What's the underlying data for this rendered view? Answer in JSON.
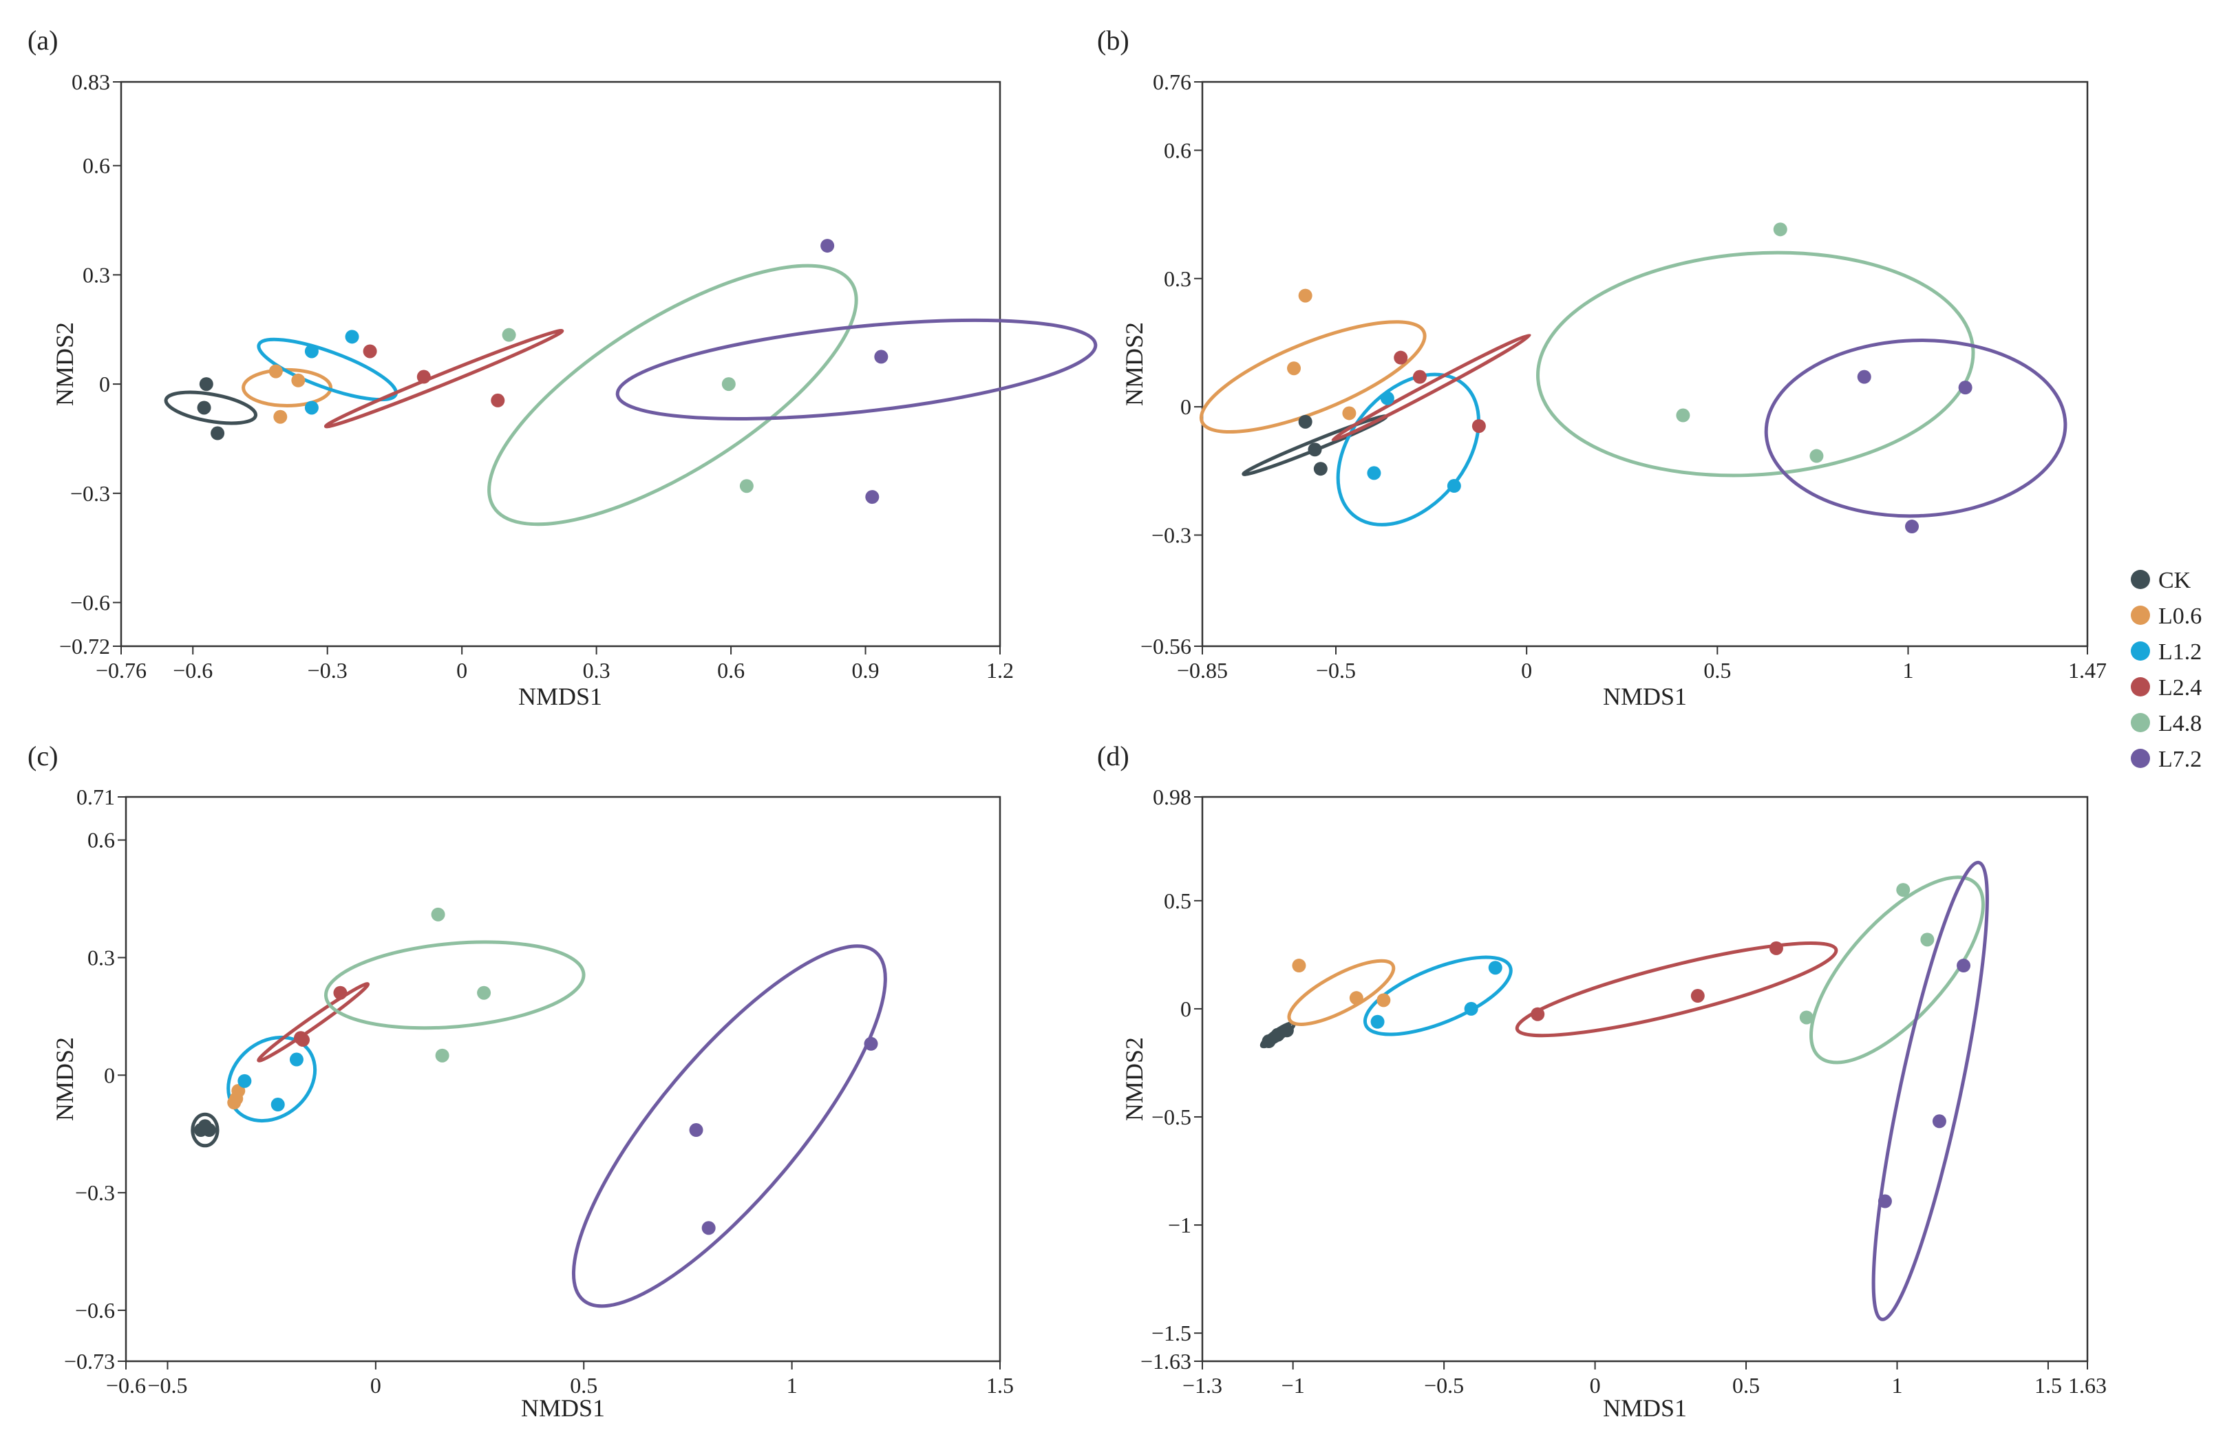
{
  "colors": {
    "CK": "#3f4f55",
    "L0.6": "#e09a55",
    "L1.2": "#19a6d9",
    "L2.4": "#b44d4f",
    "L4.8": "#8ebfa0",
    "L7.2": "#6e5ba1"
  },
  "legend": {
    "groups": [
      "CK",
      "L0.6",
      "L1.2",
      "L2.4",
      "L4.8",
      "L7.2"
    ]
  },
  "chart_data": [
    {
      "panel": "(a)",
      "type": "scatter",
      "xlabel": "NMDS1",
      "ylabel": "NMDS2",
      "xlim": [
        -0.76,
        1.2
      ],
      "ylim": [
        -0.72,
        0.83
      ],
      "xticks": [
        -0.76,
        -0.6,
        -0.3,
        0,
        0.3,
        0.6,
        0.9,
        1.2
      ],
      "xticklabels": [
        "−0.76",
        "−0.6",
        "−0.3",
        "0",
        "0.3",
        "0.6",
        "0.9",
        "1.2"
      ],
      "yticks": [
        -0.72,
        -0.6,
        -0.3,
        0,
        0.3,
        0.6,
        0.83
      ],
      "yticklabels": [
        "−0.72",
        "−0.6",
        "−0.3",
        "0",
        "0.3",
        "0.6",
        "0.83"
      ],
      "series": [
        {
          "name": "CK",
          "points": [
            [
              -0.57,
              0.0
            ],
            [
              -0.575,
              -0.065
            ],
            [
              -0.545,
              -0.135
            ]
          ],
          "ellipse": {
            "center": [
              -0.56,
              -0.065
            ],
            "rx": 0.03,
            "ry": 0.125,
            "angle": 100
          }
        },
        {
          "name": "L0.6",
          "points": [
            [
              -0.415,
              0.035
            ],
            [
              -0.405,
              -0.09
            ],
            [
              -0.365,
              0.01
            ]
          ],
          "ellipse": {
            "center": [
              -0.39,
              -0.01
            ],
            "rx": 0.04,
            "ry": 0.12,
            "angle": 90
          }
        },
        {
          "name": "L1.2",
          "points": [
            [
              -0.335,
              0.09
            ],
            [
              -0.245,
              0.13
            ],
            [
              -0.335,
              -0.065
            ]
          ],
          "ellipse": {
            "center": [
              -0.3,
              0.04
            ],
            "rx": 0.04,
            "ry": 0.2,
            "angle": 110
          }
        },
        {
          "name": "L2.4",
          "points": [
            [
              -0.205,
              0.09
            ],
            [
              -0.085,
              0.02
            ],
            [
              0.08,
              -0.045
            ]
          ],
          "ellipse": {
            "center": [
              -0.04,
              0.015
            ],
            "rx": 0.012,
            "ry": 0.35,
            "angle": 68
          }
        },
        {
          "name": "L4.8",
          "points": [
            [
              0.105,
              0.135
            ],
            [
              0.595,
              0.0
            ],
            [
              0.635,
              -0.28
            ]
          ],
          "ellipse": {
            "center": [
              0.47,
              -0.03
            ],
            "rx": 0.17,
            "ry": 0.58,
            "angle": 58
          }
        },
        {
          "name": "L7.2",
          "points": [
            [
              0.815,
              0.38
            ],
            [
              0.935,
              0.075
            ],
            [
              0.915,
              -0.31
            ]
          ],
          "ellipse": {
            "center": [
              0.88,
              0.04
            ],
            "rx": 0.095,
            "ry": 0.66,
            "angle": 84
          }
        }
      ]
    },
    {
      "panel": "(b)",
      "type": "scatter",
      "xlabel": "NMDS1",
      "ylabel": "NMDS2",
      "xlim": [
        -0.85,
        1.47
      ],
      "ylim": [
        -0.56,
        0.76
      ],
      "xticks": [
        -0.85,
        -0.5,
        0,
        0.5,
        1,
        1.47
      ],
      "xticklabels": [
        "−0.85",
        "−0.5",
        "0",
        "0.5",
        "1",
        "1.47"
      ],
      "yticks": [
        -0.56,
        -0.3,
        0,
        0.3,
        0.6,
        0.76
      ],
      "yticklabels": [
        "−0.56",
        "−0.3",
        "0",
        "0.3",
        "0.6",
        "0.76"
      ],
      "series": [
        {
          "name": "CK",
          "points": [
            [
              -0.58,
              -0.035
            ],
            [
              -0.555,
              -0.1
            ],
            [
              -0.54,
              -0.145
            ]
          ],
          "ellipse": {
            "center": [
              -0.555,
              -0.09
            ],
            "rx": 0.012,
            "ry": 0.18,
            "angle": 68
          }
        },
        {
          "name": "L0.6",
          "points": [
            [
              -0.58,
              0.26
            ],
            [
              -0.61,
              0.09
            ],
            [
              -0.465,
              -0.015
            ]
          ],
          "ellipse": {
            "center": [
              -0.56,
              0.07
            ],
            "rx": 0.09,
            "ry": 0.28,
            "angle": 68
          }
        },
        {
          "name": "L1.2",
          "points": [
            [
              -0.365,
              0.02
            ],
            [
              -0.4,
              -0.155
            ],
            [
              -0.19,
              -0.185
            ]
          ],
          "ellipse": {
            "center": [
              -0.31,
              -0.1
            ],
            "rx": 0.15,
            "ry": 0.2,
            "angle": 40
          }
        },
        {
          "name": "L2.4",
          "points": [
            [
              -0.33,
              0.115
            ],
            [
              -0.28,
              0.07
            ],
            [
              -0.125,
              -0.045
            ]
          ],
          "ellipse": {
            "center": [
              -0.25,
              0.045
            ],
            "rx": 0.012,
            "ry": 0.26,
            "angle": 62
          }
        },
        {
          "name": "L4.8",
          "points": [
            [
              0.665,
              0.415
            ],
            [
              0.41,
              -0.02
            ],
            [
              0.76,
              -0.115
            ]
          ],
          "ellipse": {
            "center": [
              0.6,
              0.1
            ],
            "rx": 0.29,
            "ry": 0.51,
            "angle": 86
          }
        },
        {
          "name": "L7.2",
          "points": [
            [
              0.885,
              0.07
            ],
            [
              1.15,
              0.045
            ],
            [
              1.01,
              -0.28
            ]
          ],
          "ellipse": {
            "center": [
              1.02,
              -0.05
            ],
            "rx": 0.23,
            "ry": 0.35,
            "angle": 88
          }
        }
      ]
    },
    {
      "panel": "(c)",
      "type": "scatter",
      "xlabel": "NMDS1",
      "ylabel": "NMDS2",
      "xlim": [
        -0.6,
        1.5
      ],
      "ylim": [
        -0.73,
        0.71
      ],
      "xticks": [
        -0.6,
        -0.5,
        0,
        0.5,
        1,
        1.5
      ],
      "xticklabels": [
        "−0.6",
        "−0.5",
        "0",
        "0.5",
        "1",
        "1.5"
      ],
      "yticks": [
        -0.73,
        -0.6,
        -0.3,
        0,
        0.3,
        0.6,
        0.71
      ],
      "yticklabels": [
        "−0.73",
        "−0.6",
        "−0.3",
        "0",
        "0.3",
        "0.6",
        "0.71"
      ],
      "series": [
        {
          "name": "CK",
          "points": [
            [
              -0.42,
              -0.14
            ],
            [
              -0.4,
              -0.14
            ],
            [
              -0.41,
              -0.13
            ]
          ],
          "ellipse": {
            "center": [
              -0.41,
              -0.14
            ],
            "rx": 0.03,
            "ry": 0.04,
            "angle": 0
          }
        },
        {
          "name": "L0.6",
          "points": [
            [
              -0.33,
              -0.04
            ],
            [
              -0.335,
              -0.06
            ],
            [
              -0.34,
              -0.07
            ]
          ],
          "ellipse": null
        },
        {
          "name": "L1.2",
          "points": [
            [
              -0.315,
              -0.015
            ],
            [
              -0.235,
              -0.075
            ],
            [
              -0.19,
              0.04
            ]
          ],
          "ellipse": {
            "center": [
              -0.25,
              -0.01
            ],
            "rx": 0.09,
            "ry": 0.12,
            "angle": 50
          }
        },
        {
          "name": "L2.4",
          "points": [
            [
              -0.18,
              0.095
            ],
            [
              -0.175,
              0.09
            ],
            [
              -0.085,
              0.21
            ]
          ],
          "ellipse": {
            "center": [
              -0.15,
              0.135
            ],
            "rx": 0.012,
            "ry": 0.17,
            "angle": 55
          }
        },
        {
          "name": "L4.8",
          "points": [
            [
              0.15,
              0.41
            ],
            [
              0.26,
              0.21
            ],
            [
              0.16,
              0.05
            ]
          ],
          "ellipse": {
            "center": [
              0.19,
              0.23
            ],
            "rx": 0.1,
            "ry": 0.33,
            "angle": 85
          }
        },
        {
          "name": "L7.2",
          "points": [
            [
              1.19,
              0.08
            ],
            [
              0.77,
              -0.14
            ],
            [
              0.8,
              -0.39
            ]
          ],
          "ellipse": {
            "center": [
              0.85,
              -0.13
            ],
            "rx": 0.17,
            "ry": 0.58,
            "angle": 40
          }
        }
      ]
    },
    {
      "panel": "(d)",
      "type": "scatter",
      "xlabel": "NMDS1",
      "ylabel": "NMDS2",
      "xlim": [
        -1.3,
        1.63
      ],
      "ylim": [
        -1.63,
        0.98
      ],
      "xticks": [
        -1.3,
        -1,
        -0.5,
        0,
        0.5,
        1,
        1.5,
        1.63
      ],
      "xticklabels": [
        "−1.3",
        "−1",
        "−0.5",
        "0",
        "0.5",
        "1",
        "1.5",
        "1.63"
      ],
      "yticks": [
        -1.63,
        -1.5,
        -1,
        -0.5,
        0,
        0.5,
        0.98
      ],
      "yticklabels": [
        "−1.63",
        "−1.5",
        "−1",
        "−0.5",
        "0",
        "0.5",
        "0.98"
      ],
      "series": [
        {
          "name": "CK",
          "points": [
            [
              -1.05,
              -0.12
            ],
            [
              -1.02,
              -0.1
            ],
            [
              -1.08,
              -0.15
            ]
          ],
          "ellipse": {
            "center": [
              -1.05,
              -0.12
            ],
            "rx": 0.015,
            "ry": 0.09,
            "angle": 55
          }
        },
        {
          "name": "L0.6",
          "points": [
            [
              -0.98,
              0.2
            ],
            [
              -0.79,
              0.05
            ],
            [
              -0.7,
              0.04
            ]
          ],
          "ellipse": {
            "center": [
              -0.84,
              0.075
            ],
            "rx": 0.06,
            "ry": 0.27,
            "angle": 62
          }
        },
        {
          "name": "L1.2",
          "points": [
            [
              -0.33,
              0.19
            ],
            [
              -0.41,
              0.0
            ],
            [
              -0.72,
              -0.06
            ]
          ],
          "ellipse": {
            "center": [
              -0.52,
              0.06
            ],
            "rx": 0.09,
            "ry": 0.36,
            "angle": 68
          }
        },
        {
          "name": "L2.4",
          "points": [
            [
              -0.19,
              -0.025
            ],
            [
              0.34,
              0.06
            ],
            [
              0.6,
              0.28
            ]
          ],
          "ellipse": {
            "center": [
              0.27,
              0.09
            ],
            "rx": 0.08,
            "ry": 0.76,
            "angle": 76
          }
        },
        {
          "name": "L4.8",
          "points": [
            [
              1.02,
              0.55
            ],
            [
              1.1,
              0.32
            ],
            [
              0.7,
              -0.04
            ]
          ],
          "ellipse": {
            "center": [
              1.0,
              0.18
            ],
            "rx": 0.16,
            "ry": 0.54,
            "angle": 42
          }
        },
        {
          "name": "L7.2",
          "points": [
            [
              1.22,
              0.2
            ],
            [
              1.14,
              -0.52
            ],
            [
              0.96,
              -0.89
            ]
          ],
          "ellipse": {
            "center": [
              1.11,
              -0.38
            ],
            "rx": 0.1,
            "ry": 1.08,
            "angle": 12
          }
        }
      ]
    }
  ]
}
